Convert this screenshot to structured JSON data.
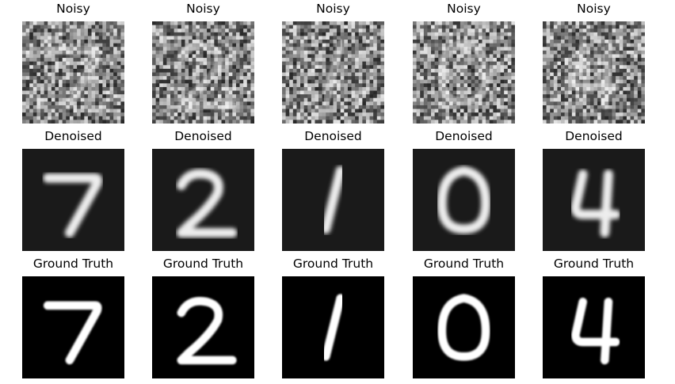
{
  "columns": 5,
  "row_titles": {
    "noisy": "Noisy",
    "denoised": "Denoised",
    "ground_truth": "Ground Truth"
  },
  "digits": [
    "7",
    "2",
    "1",
    "0",
    "4"
  ],
  "colors": {
    "background": "#ffffff",
    "noisy_base": "#808080",
    "denoised_base": "#1a1a1a",
    "ground_base": "#000000",
    "stroke": "#ffffff"
  }
}
